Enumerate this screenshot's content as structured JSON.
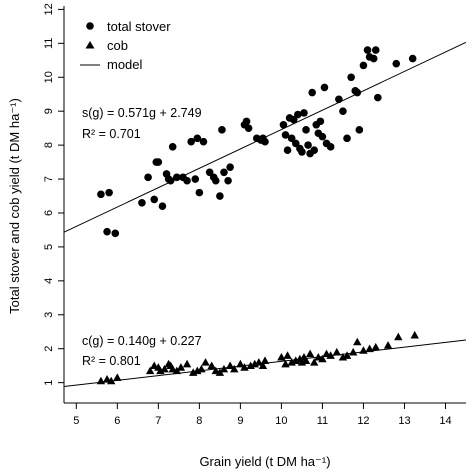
{
  "chart_data": {
    "type": "scatter",
    "title": "",
    "xlabel": "Grain yield (t DM ha⁻¹)",
    "ylabel": "Total stover and cob yield (t DM ha⁻¹)",
    "xlim": [
      4.7,
      14.5
    ],
    "ylim": [
      0.4,
      12.1
    ],
    "xticks": [
      5,
      6,
      7,
      8,
      9,
      10,
      11,
      12,
      13,
      14
    ],
    "yticks": [
      1,
      2,
      3,
      4,
      5,
      6,
      7,
      8,
      9,
      10,
      11,
      12
    ],
    "grid": false,
    "legend": {
      "position": "top-left",
      "entries": [
        {
          "label": "total stover",
          "marker": "circle"
        },
        {
          "label": "cob",
          "marker": "triangle"
        },
        {
          "label": "model",
          "marker": "line"
        }
      ]
    },
    "annotations": {
      "stover_eq": "s(g) = 0.571g + 2.749",
      "stover_r2": "R² = 0.701",
      "cob_eq": "c(g) = 0.140g + 0.227",
      "cob_r2": "R² = 0.801"
    },
    "series": [
      {
        "name": "total stover",
        "marker": "circle",
        "color": "#000000",
        "x": [
          5.6,
          5.8,
          5.75,
          5.95,
          6.6,
          6.75,
          6.9,
          6.95,
          7.0,
          7.1,
          7.2,
          7.25,
          7.3,
          7.35,
          7.45,
          7.6,
          7.7,
          7.8,
          7.9,
          7.95,
          8.0,
          8.1,
          8.25,
          8.35,
          8.4,
          8.5,
          8.55,
          8.6,
          8.7,
          8.75,
          9.1,
          9.15,
          9.2,
          9.4,
          9.5,
          9.55,
          9.6,
          10.05,
          10.1,
          10.15,
          10.2,
          10.25,
          10.3,
          10.35,
          10.4,
          10.45,
          10.5,
          10.55,
          10.6,
          10.65,
          10.7,
          10.75,
          10.8,
          10.85,
          10.9,
          10.95,
          11.0,
          11.05,
          11.1,
          11.2,
          11.4,
          11.5,
          11.6,
          11.7,
          11.8,
          11.85,
          11.9,
          12.0,
          12.1,
          12.15,
          12.25,
          12.3,
          12.35,
          12.8,
          13.2
        ],
        "y": [
          6.55,
          6.6,
          5.45,
          5.4,
          6.3,
          7.05,
          6.4,
          7.5,
          7.5,
          6.2,
          7.15,
          7.0,
          6.95,
          7.95,
          7.05,
          7.05,
          6.95,
          8.1,
          7.0,
          8.2,
          6.6,
          8.1,
          7.2,
          7.05,
          6.95,
          6.5,
          8.45,
          7.2,
          6.95,
          7.35,
          8.6,
          8.7,
          8.5,
          8.2,
          8.15,
          8.2,
          8.1,
          8.6,
          8.3,
          7.85,
          8.8,
          8.2,
          8.75,
          8.05,
          8.9,
          7.9,
          7.8,
          8.95,
          8.45,
          8.0,
          7.75,
          9.55,
          7.85,
          8.6,
          8.35,
          8.7,
          8.25,
          9.7,
          8.05,
          7.95,
          9.35,
          9.0,
          8.2,
          10.0,
          9.6,
          9.55,
          8.45,
          10.35,
          10.8,
          10.6,
          10.55,
          10.8,
          9.4,
          10.4,
          10.55
        ]
      },
      {
        "name": "cob",
        "marker": "triangle",
        "color": "#000000",
        "x": [
          5.6,
          5.75,
          5.85,
          6.0,
          6.8,
          6.9,
          7.0,
          7.05,
          7.15,
          7.25,
          7.3,
          7.35,
          7.45,
          7.55,
          7.7,
          7.85,
          7.95,
          8.05,
          8.15,
          8.3,
          8.4,
          8.5,
          8.6,
          8.75,
          8.85,
          9.0,
          9.1,
          9.25,
          9.35,
          9.45,
          9.55,
          9.6,
          10.0,
          10.1,
          10.15,
          10.25,
          10.35,
          10.45,
          10.5,
          10.55,
          10.6,
          10.7,
          10.8,
          10.9,
          11.0,
          11.1,
          11.2,
          11.35,
          11.5,
          11.6,
          11.75,
          11.85,
          12.0,
          12.15,
          12.3,
          12.6,
          12.85,
          13.25
        ],
        "y": [
          1.05,
          1.1,
          1.05,
          1.15,
          1.35,
          1.5,
          1.45,
          1.35,
          1.4,
          1.55,
          1.5,
          1.4,
          1.35,
          1.45,
          1.55,
          1.3,
          1.35,
          1.4,
          1.6,
          1.5,
          1.35,
          1.3,
          1.4,
          1.5,
          1.4,
          1.55,
          1.45,
          1.5,
          1.55,
          1.6,
          1.5,
          1.65,
          1.75,
          1.55,
          1.8,
          1.6,
          1.65,
          1.7,
          1.6,
          1.75,
          1.65,
          1.85,
          1.6,
          1.75,
          1.7,
          1.85,
          1.8,
          1.9,
          1.75,
          1.8,
          1.9,
          2.2,
          1.95,
          2.0,
          2.05,
          2.1,
          2.35,
          2.4
        ]
      }
    ],
    "fits": [
      {
        "name": "stover model",
        "slope": 0.571,
        "intercept": 2.749,
        "x_range": [
          4.7,
          14.5
        ]
      },
      {
        "name": "cob model",
        "slope": 0.14,
        "intercept": 0.227,
        "x_range": [
          4.7,
          14.5
        ]
      }
    ]
  }
}
